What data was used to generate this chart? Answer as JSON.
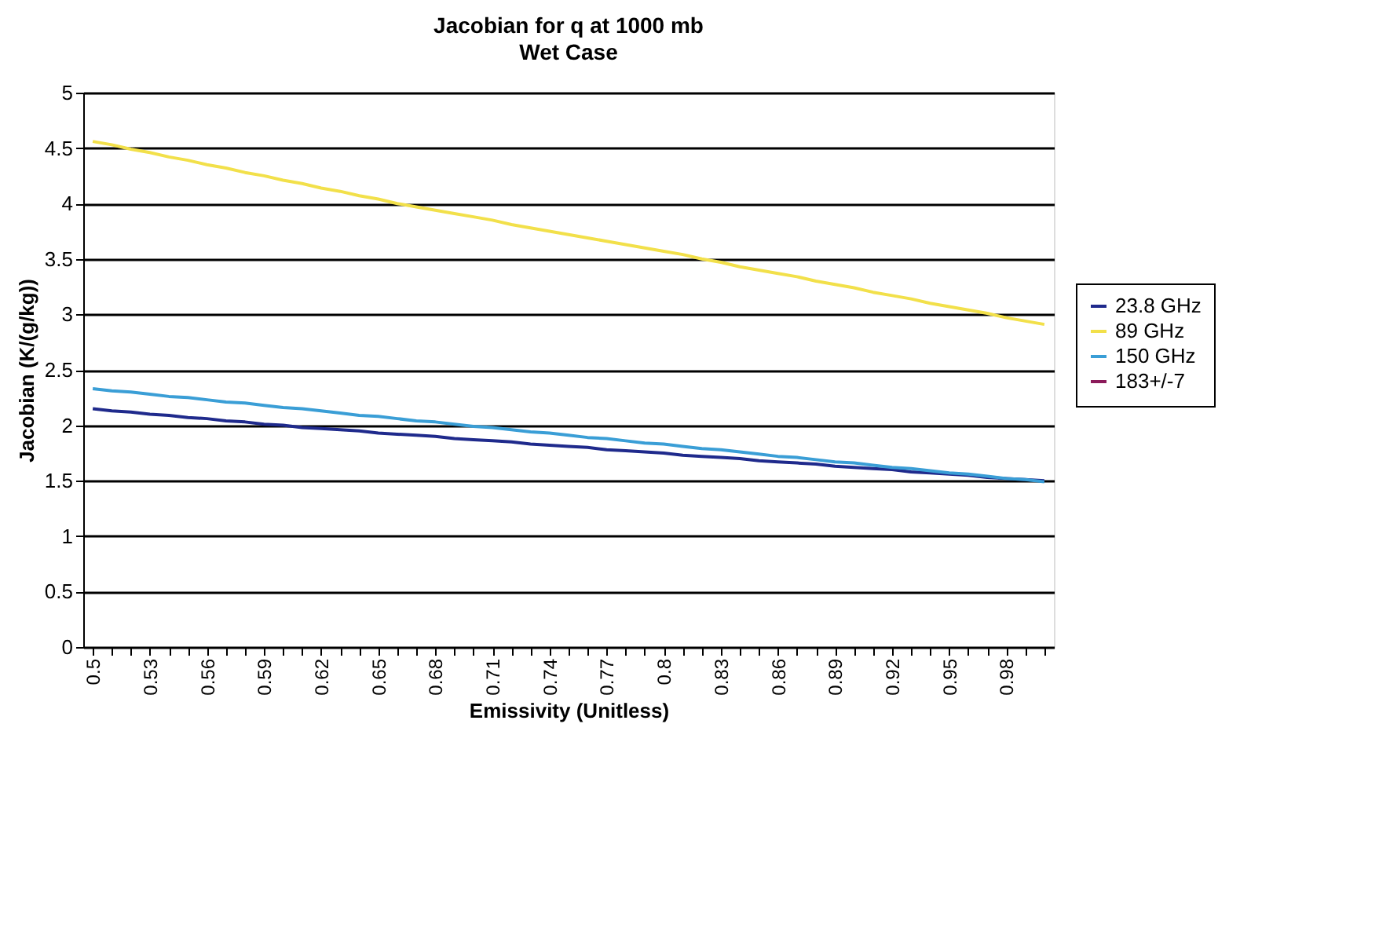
{
  "chart_data": {
    "type": "line",
    "title": "Jacobian for q at 1000 mb",
    "subtitle": "Wet Case",
    "xlabel": "Emissivity (Unitless)",
    "ylabel": "Jacobian (K/(g/kg))",
    "categories": [
      "0.5",
      null,
      null,
      "0.53",
      null,
      null,
      "0.56",
      null,
      null,
      "0.59",
      null,
      null,
      "0.62",
      null,
      null,
      "0.65",
      null,
      null,
      "0.68",
      null,
      null,
      "0.71",
      null,
      null,
      "0.74",
      null,
      null,
      "0.77",
      null,
      null,
      "0.8",
      null,
      null,
      "0.83",
      null,
      null,
      "0.86",
      null,
      null,
      "0.89",
      null,
      null,
      "0.92",
      null,
      null,
      "0.95",
      null,
      null,
      "0.98",
      null,
      null
    ],
    "series": [
      {
        "name": "23.8 GHz",
        "color": "#1f2a8c",
        "values": [
          2.15,
          2.13,
          2.12,
          2.1,
          2.09,
          2.07,
          2.06,
          2.04,
          2.03,
          2.01,
          2.0,
          1.98,
          1.97,
          1.96,
          1.95,
          1.93,
          1.92,
          1.91,
          1.9,
          1.88,
          1.87,
          1.86,
          1.85,
          1.83,
          1.82,
          1.81,
          1.8,
          1.78,
          1.77,
          1.76,
          1.75,
          1.73,
          1.72,
          1.71,
          1.7,
          1.68,
          1.67,
          1.66,
          1.65,
          1.63,
          1.62,
          1.61,
          1.6,
          1.58,
          1.57,
          1.56,
          1.55,
          1.53,
          1.52,
          1.51,
          1.5
        ]
      },
      {
        "name": "89 GHz",
        "color": "#f2e04a",
        "values": [
          4.56,
          4.53,
          4.49,
          4.46,
          4.42,
          4.39,
          4.35,
          4.32,
          4.28,
          4.25,
          4.21,
          4.18,
          4.14,
          4.11,
          4.07,
          4.04,
          4.0,
          3.97,
          3.94,
          3.91,
          3.88,
          3.85,
          3.81,
          3.78,
          3.75,
          3.72,
          3.69,
          3.66,
          3.63,
          3.6,
          3.57,
          3.54,
          3.5,
          3.47,
          3.43,
          3.4,
          3.37,
          3.34,
          3.3,
          3.27,
          3.24,
          3.2,
          3.17,
          3.14,
          3.1,
          3.07,
          3.04,
          3.01,
          2.97,
          2.94,
          2.91
        ]
      },
      {
        "name": "150 GHz",
        "color": "#3a9ed6",
        "values": [
          2.33,
          2.31,
          2.3,
          2.28,
          2.26,
          2.25,
          2.23,
          2.21,
          2.2,
          2.18,
          2.16,
          2.15,
          2.13,
          2.11,
          2.09,
          2.08,
          2.06,
          2.04,
          2.03,
          2.01,
          1.99,
          1.98,
          1.96,
          1.94,
          1.93,
          1.91,
          1.89,
          1.88,
          1.86,
          1.84,
          1.83,
          1.81,
          1.79,
          1.78,
          1.76,
          1.74,
          1.72,
          1.71,
          1.69,
          1.67,
          1.66,
          1.64,
          1.62,
          1.61,
          1.59,
          1.57,
          1.56,
          1.54,
          1.52,
          1.51,
          1.49
        ]
      },
      {
        "name": "183+/-7",
        "color": "#8b1a5a",
        "values": [
          null,
          null,
          null,
          null,
          null,
          null,
          null,
          null,
          null,
          null,
          null,
          null,
          null,
          null,
          null,
          null,
          null,
          null,
          null,
          null,
          null,
          null,
          null,
          null,
          null,
          null,
          null,
          null,
          null,
          null,
          null,
          null,
          null,
          null,
          null,
          null,
          null,
          null,
          null,
          null,
          null,
          null,
          null,
          null,
          null,
          null,
          null,
          null,
          null,
          null,
          null
        ]
      }
    ],
    "ylim": [
      0,
      5
    ],
    "yticks": [
      0,
      0.5,
      1,
      1.5,
      2,
      2.5,
      3,
      3.5,
      4,
      4.5,
      5
    ],
    "grid": "y",
    "legend": "right",
    "line_style": "solid",
    "marker": "none"
  }
}
